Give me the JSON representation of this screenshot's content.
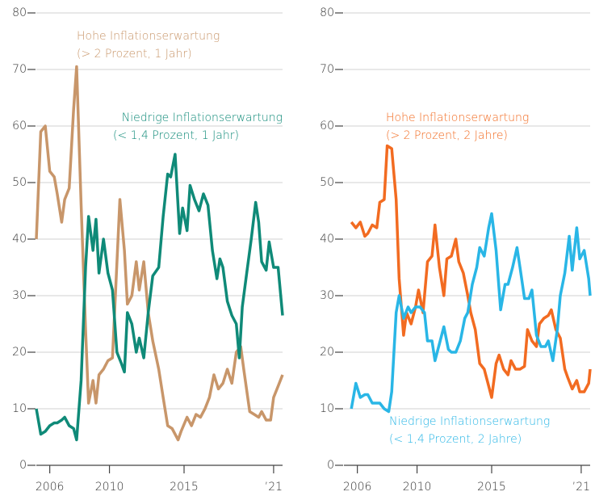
{
  "chart_data": [
    {
      "type": "line",
      "xlim": [
        2005.1,
        2021.6
      ],
      "ylim": [
        0,
        80
      ],
      "xticks": [
        2006,
        2010,
        2015,
        {
          "value": 2021,
          "label": "’21"
        }
      ],
      "yticks": [
        0,
        10,
        20,
        30,
        40,
        50,
        60,
        70,
        80
      ],
      "grid": true,
      "series": [
        {
          "name": "Hohe Inflationserwartung",
          "note": "(> 2 Prozent, 1 Jahr)",
          "color": "#c8966a",
          "x": [
            2005.1,
            2005.4,
            2005.7,
            2006.0,
            2006.3,
            2006.5,
            2006.8,
            2007.0,
            2007.3,
            2007.6,
            2007.8,
            2008.1,
            2008.4,
            2008.6,
            2008.9,
            2009.1,
            2009.3,
            2009.6,
            2009.9,
            2010.2,
            2010.7,
            2011.0,
            2011.2,
            2011.5,
            2011.8,
            2012.0,
            2012.3,
            2012.6,
            2012.9,
            2013.3,
            2013.6,
            2013.9,
            2014.2,
            2014.6,
            2014.8,
            2015.2,
            2015.5,
            2015.8,
            2016.1,
            2016.4,
            2016.7,
            2017.0,
            2017.3,
            2017.6,
            2017.9,
            2018.2,
            2018.5,
            2018.8,
            2019.0,
            2019.4,
            2019.7,
            2020.0,
            2020.2,
            2020.5,
            2020.8,
            2021.0,
            2021.3,
            2021.6
          ],
          "values": [
            40,
            59,
            60,
            52,
            51,
            48,
            43,
            47,
            49,
            63,
            70.5,
            46,
            24,
            11,
            15,
            11,
            16,
            17,
            18.5,
            19,
            47,
            38,
            28.5,
            30,
            36,
            31,
            36,
            27,
            22,
            17,
            12,
            7,
            6.5,
            4.5,
            6,
            8.5,
            7,
            9,
            8.5,
            10,
            12,
            16,
            13.5,
            14.5,
            17,
            14.5,
            20,
            21,
            17,
            9.5,
            9,
            8.5,
            9.5,
            8,
            8,
            12,
            14,
            16
          ]
        },
        {
          "name": "Niedrige Inflationserwartung",
          "note": "(< 1,4 Prozent, 1  Jahr)",
          "color": "#0f8a78",
          "x": [
            2005.1,
            2005.4,
            2005.7,
            2006.0,
            2006.3,
            2006.5,
            2006.8,
            2007.0,
            2007.3,
            2007.6,
            2007.8,
            2008.1,
            2008.4,
            2008.6,
            2008.9,
            2009.1,
            2009.3,
            2009.6,
            2009.9,
            2010.2,
            2010.5,
            2010.8,
            2011.0,
            2011.2,
            2011.5,
            2011.8,
            2012.0,
            2012.3,
            2012.6,
            2012.9,
            2013.3,
            2013.6,
            2013.9,
            2014.1,
            2014.4,
            2014.7,
            2014.9,
            2015.2,
            2015.4,
            2015.7,
            2016.0,
            2016.3,
            2016.6,
            2016.9,
            2017.2,
            2017.4,
            2017.6,
            2017.9,
            2018.2,
            2018.5,
            2018.7,
            2018.9,
            2019.2,
            2019.5,
            2019.8,
            2020.0,
            2020.2,
            2020.5,
            2020.7,
            2021.0,
            2021.3,
            2021.6
          ],
          "values": [
            10,
            5.5,
            6,
            7,
            7.5,
            7.5,
            8,
            8.5,
            7,
            6.5,
            4.5,
            15,
            35,
            44,
            38,
            43.5,
            34,
            40,
            34,
            31,
            20,
            18,
            16.5,
            27,
            25,
            20,
            22.5,
            19,
            27,
            33.5,
            35,
            44,
            51.5,
            51,
            55,
            41,
            45.5,
            41.5,
            49.5,
            47,
            45,
            48,
            46,
            38,
            33,
            36.5,
            35,
            29,
            26.5,
            25,
            19,
            28,
            34,
            40,
            46.5,
            43,
            36,
            34.5,
            39.5,
            35,
            35,
            26.5
          ]
        }
      ]
    },
    {
      "type": "line",
      "xlim": [
        2005.1,
        2021.6
      ],
      "ylim": [
        0,
        80
      ],
      "xticks": [
        2006,
        2010,
        2015,
        {
          "value": 2021,
          "label": "’21"
        }
      ],
      "yticks": [
        0,
        10,
        20,
        30,
        40,
        50,
        60,
        70,
        80
      ],
      "grid": true,
      "series": [
        {
          "name": "Hohe Inflationserwartung",
          "note": "(> 2 Prozent, 2 Jahre)",
          "color": "#f26b21",
          "x": [
            2005.6,
            2005.9,
            2006.2,
            2006.5,
            2006.7,
            2007.0,
            2007.3,
            2007.5,
            2007.8,
            2008.0,
            2008.3,
            2008.6,
            2008.8,
            2009.1,
            2009.3,
            2009.6,
            2009.9,
            2010.1,
            2010.4,
            2010.7,
            2011.0,
            2011.2,
            2011.5,
            2011.8,
            2012.0,
            2012.3,
            2012.6,
            2012.8,
            2013.1,
            2013.4,
            2013.6,
            2013.9,
            2014.2,
            2014.5,
            2014.7,
            2015.0,
            2015.3,
            2015.5,
            2015.8,
            2016.1,
            2016.3,
            2016.6,
            2016.9,
            2017.2,
            2017.4,
            2017.7,
            2018.0,
            2018.2,
            2018.5,
            2018.8,
            2019.0,
            2019.3,
            2019.6,
            2019.9,
            2020.1,
            2020.4,
            2020.7,
            2020.9,
            2021.2,
            2021.5,
            2021.6
          ],
          "values": [
            43,
            42,
            43,
            40.5,
            41,
            42.5,
            42,
            46.5,
            47,
            56.5,
            56,
            47,
            33,
            23,
            27,
            25,
            28,
            31,
            27,
            36,
            37,
            42.5,
            35,
            30,
            36.5,
            37,
            40,
            36,
            34,
            30,
            27,
            24,
            18,
            17,
            15,
            12,
            18,
            19.5,
            17,
            16,
            18.5,
            17,
            17,
            17.5,
            24,
            22,
            21,
            25,
            26,
            26.5,
            27.5,
            24,
            22.5,
            17,
            15.5,
            13.5,
            15,
            13,
            13,
            14.5,
            17
          ]
        },
        {
          "name": "Niedrige Inflationserwartung",
          "note": "(< 1,4 Prozent, 2  Jahre)",
          "color": "#29b6e6",
          "x": [
            2005.6,
            2005.9,
            2006.2,
            2006.5,
            2006.7,
            2007.0,
            2007.3,
            2007.5,
            2007.8,
            2008.1,
            2008.3,
            2008.6,
            2008.8,
            2009.1,
            2009.4,
            2009.6,
            2009.9,
            2010.2,
            2010.5,
            2010.7,
            2011.0,
            2011.2,
            2011.5,
            2011.8,
            2012.1,
            2012.3,
            2012.6,
            2012.9,
            2013.2,
            2013.4,
            2013.7,
            2014.0,
            2014.2,
            2014.5,
            2014.8,
            2015.0,
            2015.3,
            2015.6,
            2015.9,
            2016.1,
            2016.4,
            2016.7,
            2016.9,
            2017.2,
            2017.5,
            2017.7,
            2018.0,
            2018.3,
            2018.6,
            2018.8,
            2019.1,
            2019.4,
            2019.6,
            2019.9,
            2020.2,
            2020.4,
            2020.7,
            2020.9,
            2021.2,
            2021.5,
            2021.6
          ],
          "values": [
            10,
            14.5,
            12,
            12.5,
            12.5,
            11,
            11,
            11,
            10,
            9.5,
            13,
            27,
            30,
            26,
            28,
            27,
            28,
            28,
            27,
            22,
            22,
            18.5,
            21.5,
            24.5,
            20.5,
            20,
            20,
            22,
            26,
            27,
            32,
            35,
            38.5,
            37,
            42,
            44.5,
            38,
            27.5,
            32,
            32,
            35,
            38.5,
            35,
            29.5,
            29.5,
            31,
            23,
            21,
            21,
            22,
            18.5,
            24,
            30,
            34,
            40.5,
            34.5,
            42,
            36.5,
            38,
            33,
            30
          ]
        }
      ]
    }
  ]
}
